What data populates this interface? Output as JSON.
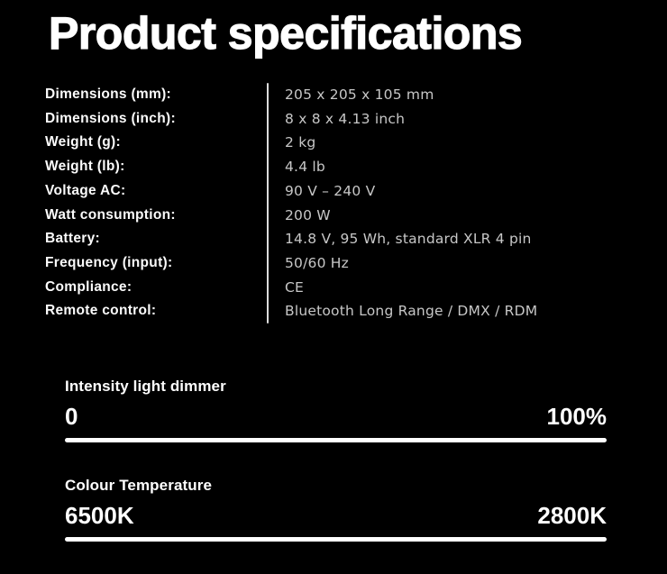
{
  "page": {
    "title": "Product specifications"
  },
  "specs": {
    "rows": [
      {
        "label": "Dimensions (mm):",
        "value": "205 x 205 x 105 mm"
      },
      {
        "label": "Dimensions (inch):",
        "value": "8 x 8 x 4.13 inch"
      },
      {
        "label": "Weight (g):",
        "value": "2 kg"
      },
      {
        "label": "Weight (lb):",
        "value": "4.4 lb"
      },
      {
        "label": "Voltage AC:",
        "value": "90 V – 240 V"
      },
      {
        "label": "Watt consumption:",
        "value": "200 W"
      },
      {
        "label": "Battery:",
        "value": "14.8 V, 95 Wh, standard XLR 4 pin"
      },
      {
        "label": "Frequency (input):",
        "value": "50/60 Hz"
      },
      {
        "label": "Compliance:",
        "value": "CE"
      },
      {
        "label": "Remote control:",
        "value": "Bluetooth Long Range / DMX / RDM"
      }
    ]
  },
  "sliders": [
    {
      "title": "Intensity light dimmer",
      "min_label": "0",
      "max_label": "100%"
    },
    {
      "title": "Colour Temperature",
      "min_label": "6500K",
      "max_label": "2800K"
    }
  ],
  "colors": {
    "background": "#000000",
    "heading_text": "#ffffff",
    "value_text": "#c7c7c7",
    "divider": "#dcdcdc",
    "bar": "#ffffff"
  }
}
